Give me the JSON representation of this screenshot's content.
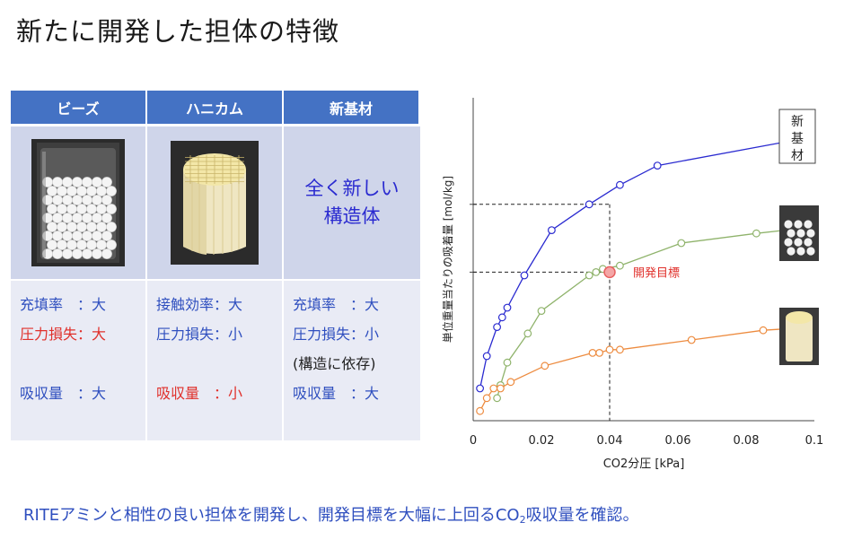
{
  "title": "新たに開発した担体の特徴",
  "table": {
    "headers": [
      "ビーズ",
      "ハニカム",
      "新基材"
    ],
    "new_material_text": [
      "全く新しい",
      "構造体"
    ],
    "properties": [
      [
        {
          "text": "充填率　：大",
          "color": "blue"
        },
        {
          "text": "圧力損失：大",
          "color": "red"
        },
        {
          "text": "",
          "color": "blue"
        },
        {
          "text": "吸収量　：大",
          "color": "blue"
        }
      ],
      [
        {
          "text": "接触効率：大",
          "color": "blue"
        },
        {
          "text": "圧力損失：小",
          "color": "blue"
        },
        {
          "text": "",
          "color": "blue"
        },
        {
          "text": "吸収量　：小",
          "color": "red"
        }
      ],
      [
        {
          "text": "充填率　：大",
          "color": "blue"
        },
        {
          "text": "圧力損失：小",
          "color": "blue"
        },
        {
          "text": "(構造に依存)",
          "color": "dark"
        },
        {
          "text": "吸収量　：大",
          "color": "blue"
        }
      ]
    ]
  },
  "chart_data": {
    "type": "scatter",
    "xlabel": "CO2分圧 [kPa]",
    "ylabel": "単位重量当たりの吸着量 [mol/kg]",
    "xlim": [
      0,
      0.1
    ],
    "xticks": [
      "0",
      "0.02",
      "0.04",
      "0.06",
      "0.08",
      "0.1"
    ],
    "yaxis_ticks_labeled": false,
    "grid": false,
    "series": [
      {
        "name": "新基材",
        "color": "#2a2ad0",
        "points": [
          [
            0.002,
            0.1
          ],
          [
            0.004,
            0.2
          ],
          [
            0.007,
            0.29
          ],
          [
            0.0085,
            0.32
          ],
          [
            0.01,
            0.35
          ],
          [
            0.015,
            0.45
          ],
          [
            0.023,
            0.59
          ],
          [
            0.034,
            0.67
          ],
          [
            0.043,
            0.73
          ],
          [
            0.054,
            0.79
          ]
        ],
        "curve_to": [
          0.1,
          0.88
        ]
      },
      {
        "name": "ビーズ",
        "color": "#8fb36b",
        "points": [
          [
            0.007,
            0.07
          ],
          [
            0.008,
            0.11
          ],
          [
            0.01,
            0.18
          ],
          [
            0.016,
            0.27
          ],
          [
            0.02,
            0.34
          ],
          [
            0.034,
            0.45
          ],
          [
            0.036,
            0.46
          ],
          [
            0.038,
            0.47
          ],
          [
            0.043,
            0.48
          ],
          [
            0.061,
            0.55
          ],
          [
            0.083,
            0.58
          ]
        ],
        "curve_to": [
          0.1,
          0.6
        ]
      },
      {
        "name": "ハニカム",
        "color": "#ed8b3f",
        "points": [
          [
            0.002,
            0.03
          ],
          [
            0.004,
            0.07
          ],
          [
            0.006,
            0.1
          ],
          [
            0.008,
            0.1
          ],
          [
            0.011,
            0.12
          ],
          [
            0.021,
            0.17
          ],
          [
            0.035,
            0.21
          ],
          [
            0.037,
            0.21
          ],
          [
            0.04,
            0.22
          ],
          [
            0.043,
            0.22
          ],
          [
            0.064,
            0.25
          ],
          [
            0.085,
            0.28
          ]
        ],
        "curve_to": [
          0.1,
          0.29
        ]
      }
    ],
    "target": {
      "label": "開発目標",
      "x": 0.04,
      "y": 0.46,
      "color": "#e86060"
    },
    "reference_y": 0.67,
    "legend_labels": [
      "新",
      "基",
      "材"
    ]
  },
  "footer": {
    "pre": "RITEアミンと相性の良い担体を開発し、開発目標を大幅に上回るCO",
    "sub": "2",
    "post": "吸収量を確認。"
  }
}
